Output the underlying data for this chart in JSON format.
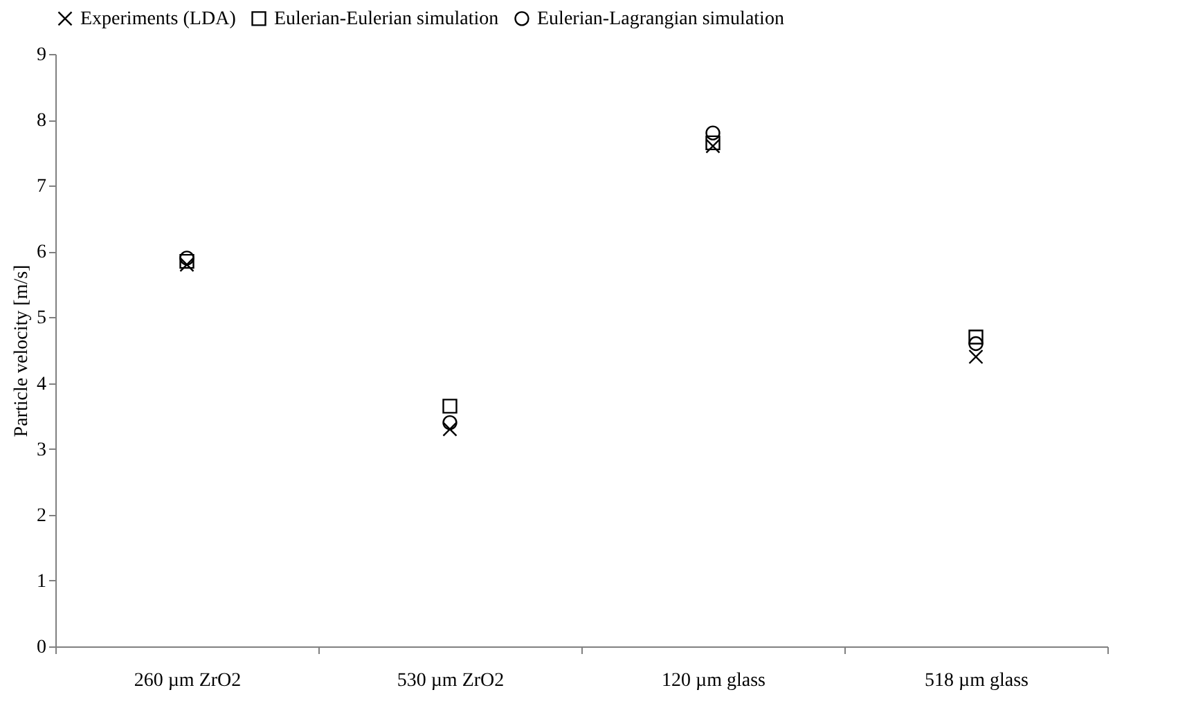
{
  "chart_data": {
    "type": "scatter",
    "ylabel": "Particle velocity [m/s]",
    "categories": [
      "260 µm ZrO2",
      "530 µm ZrO2",
      "120 µm glass",
      "518 µm glass"
    ],
    "series": [
      {
        "name": "Experiments (LDA)",
        "color": "#000000",
        "marker": "cross",
        "values": [
          5.8,
          3.3,
          7.6,
          4.4
        ]
      },
      {
        "name": "Eulerian-Eulerian simulation",
        "color": "#000000",
        "marker": "square",
        "values": [
          5.85,
          3.65,
          7.65,
          4.7
        ]
      },
      {
        "name": "Eulerian-Lagrangian simulation",
        "color": "#000000",
        "marker": "circle",
        "values": [
          5.9,
          3.4,
          7.8,
          4.6
        ]
      }
    ],
    "ylim": [
      0,
      9
    ],
    "yticks": [
      0,
      1,
      2,
      3,
      4,
      5,
      6,
      7,
      8,
      9
    ],
    "grid": false,
    "legend": "top"
  }
}
